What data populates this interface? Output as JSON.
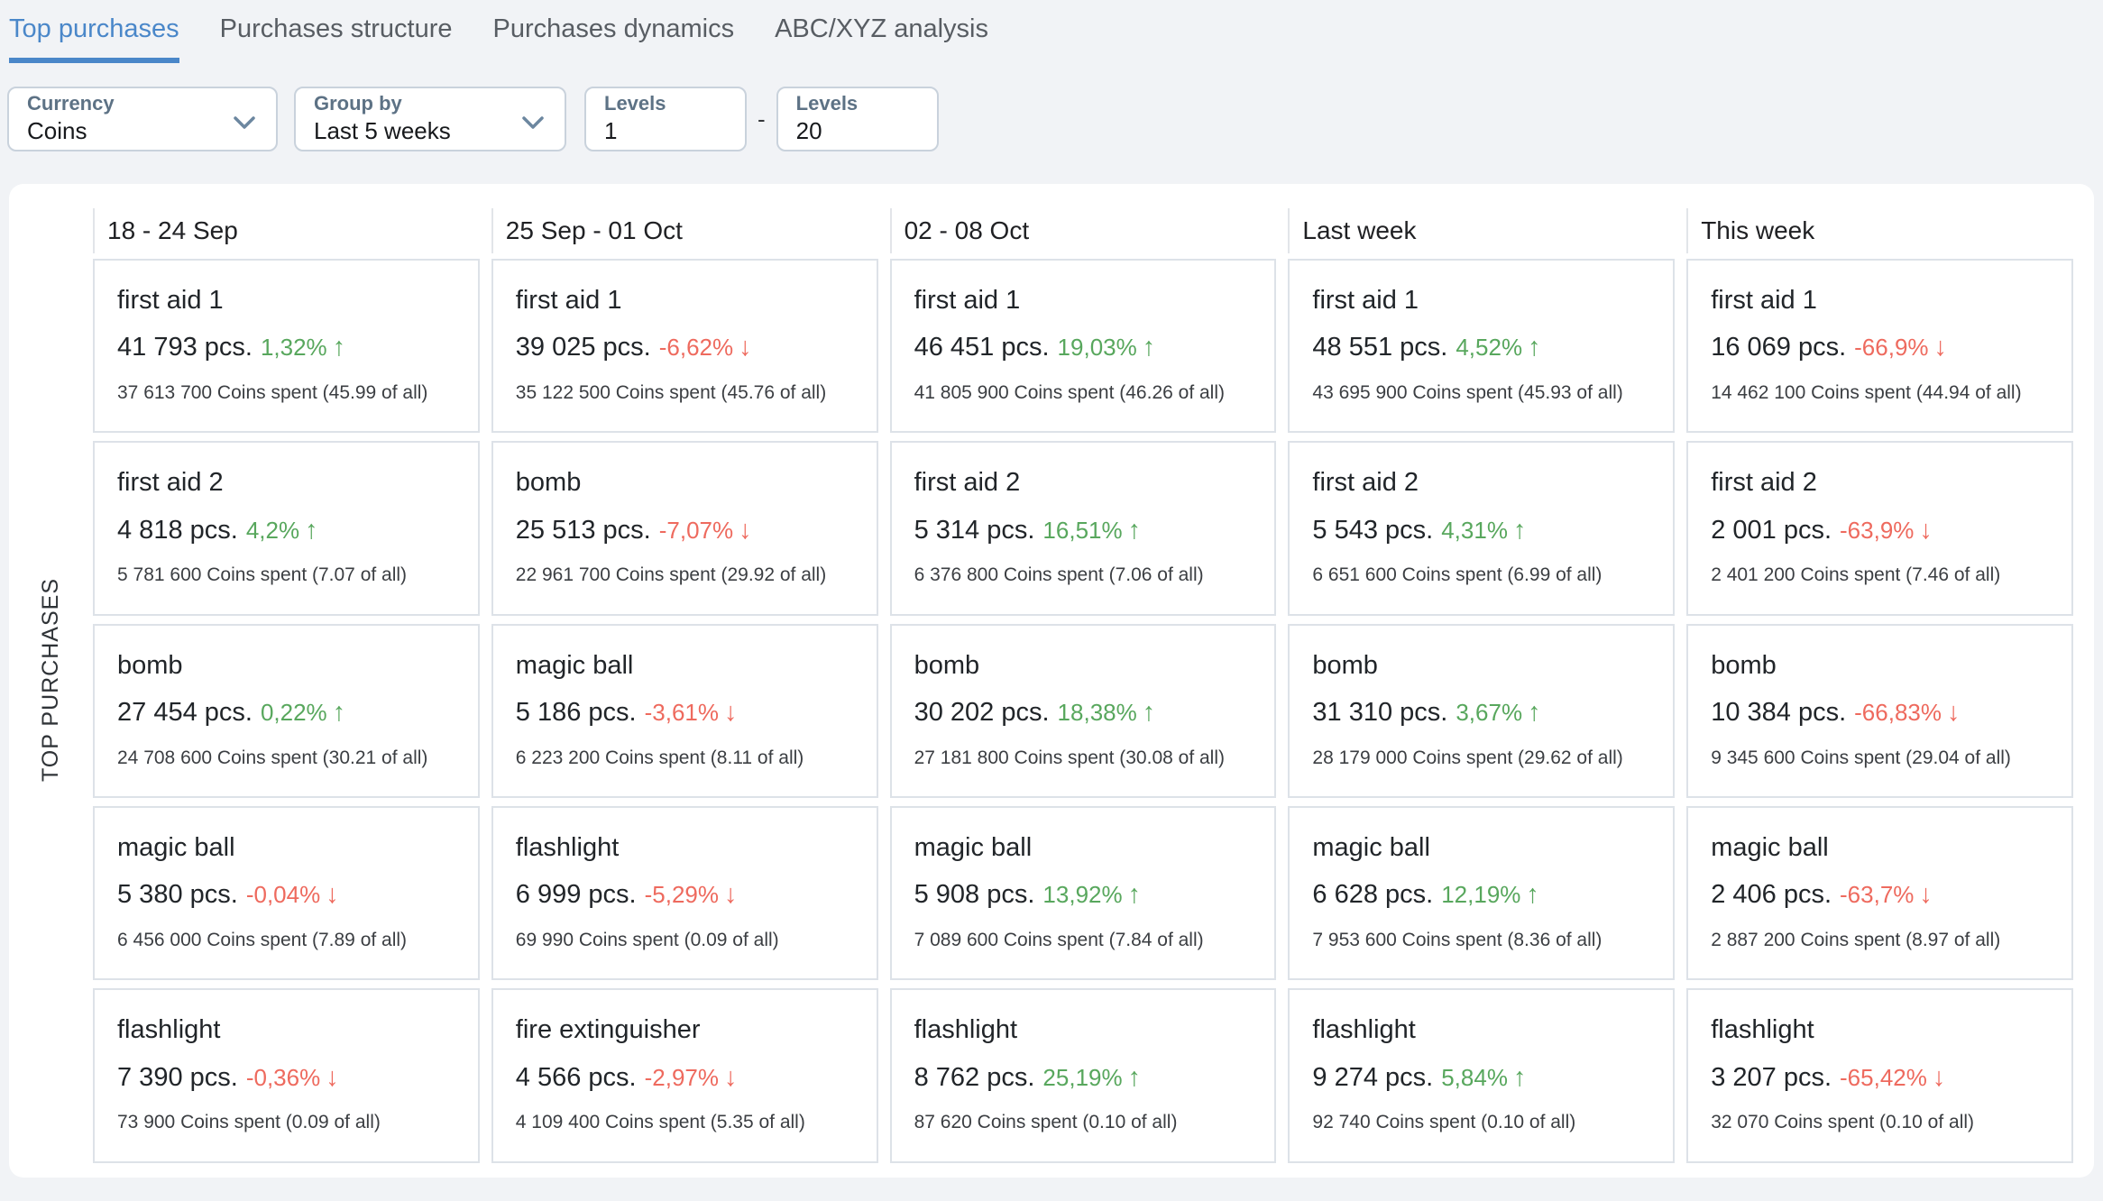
{
  "tabs": [
    {
      "label": "Top purchases",
      "active": true
    },
    {
      "label": "Purchases structure",
      "active": false
    },
    {
      "label": "Purchases dynamics",
      "active": false
    },
    {
      "label": "ABC/XYZ analysis",
      "active": false
    }
  ],
  "filters": {
    "currency": {
      "label": "Currency",
      "value": "Coins"
    },
    "group_by": {
      "label": "Group by",
      "value": "Last 5 weeks"
    },
    "levels_from": {
      "label": "Levels",
      "value": "1"
    },
    "separator": "-",
    "levels_to": {
      "label": "Levels",
      "value": "20"
    }
  },
  "section_label": "TOP PURCHASES",
  "colors": {
    "accent_blue": "#4a87c9",
    "trend_up_green": "#58a75d",
    "trend_down_red": "#ee6a5e"
  },
  "columns": [
    {
      "header": "18 - 24 Sep",
      "cards": [
        {
          "title": "first aid 1",
          "qty": "41 793 pcs.",
          "change": "1,32%",
          "direction": "up",
          "spent": "37 613 700 Coins spent (45.99 of all)"
        },
        {
          "title": "first aid 2",
          "qty": "4 818 pcs.",
          "change": "4,2%",
          "direction": "up",
          "spent": "5 781 600 Coins spent (7.07 of all)"
        },
        {
          "title": "bomb",
          "qty": "27 454 pcs.",
          "change": "0,22%",
          "direction": "up",
          "spent": "24 708 600 Coins spent (30.21 of all)"
        },
        {
          "title": "magic ball",
          "qty": "5 380 pcs.",
          "change": "-0,04%",
          "direction": "down",
          "spent": "6 456 000 Coins spent (7.89 of all)"
        },
        {
          "title": "flashlight",
          "qty": "7 390 pcs.",
          "change": "-0,36%",
          "direction": "down",
          "spent": "73 900 Coins spent (0.09 of all)"
        }
      ]
    },
    {
      "header": "25 Sep - 01 Oct",
      "cards": [
        {
          "title": "first aid 1",
          "qty": "39 025 pcs.",
          "change": "-6,62%",
          "direction": "down",
          "spent": "35 122 500 Coins spent (45.76 of all)"
        },
        {
          "title": "bomb",
          "qty": "25 513 pcs.",
          "change": "-7,07%",
          "direction": "down",
          "spent": "22 961 700 Coins spent (29.92 of all)"
        },
        {
          "title": "magic ball",
          "qty": "5 186 pcs.",
          "change": "-3,61%",
          "direction": "down",
          "spent": "6 223 200 Coins spent (8.11 of all)"
        },
        {
          "title": "flashlight",
          "qty": "6 999 pcs.",
          "change": "-5,29%",
          "direction": "down",
          "spent": "69 990 Coins spent (0.09 of all)"
        },
        {
          "title": "fire extinguisher",
          "qty": "4 566 pcs.",
          "change": "-2,97%",
          "direction": "down",
          "spent": "4 109 400 Coins spent (5.35 of all)"
        }
      ]
    },
    {
      "header": "02 - 08 Oct",
      "cards": [
        {
          "title": "first aid 1",
          "qty": "46 451 pcs.",
          "change": "19,03%",
          "direction": "up",
          "spent": "41 805 900 Coins spent (46.26 of all)"
        },
        {
          "title": "first aid 2",
          "qty": "5 314 pcs.",
          "change": "16,51%",
          "direction": "up",
          "spent": "6 376 800 Coins spent (7.06 of all)"
        },
        {
          "title": "bomb",
          "qty": "30 202 pcs.",
          "change": "18,38%",
          "direction": "up",
          "spent": "27 181 800 Coins spent (30.08 of all)"
        },
        {
          "title": "magic ball",
          "qty": "5 908 pcs.",
          "change": "13,92%",
          "direction": "up",
          "spent": "7 089 600 Coins spent (7.84 of all)"
        },
        {
          "title": "flashlight",
          "qty": "8 762 pcs.",
          "change": "25,19%",
          "direction": "up",
          "spent": "87 620 Coins spent (0.10 of all)"
        }
      ]
    },
    {
      "header": "Last week",
      "cards": [
        {
          "title": "first aid 1",
          "qty": "48 551 pcs.",
          "change": "4,52%",
          "direction": "up",
          "spent": "43 695 900 Coins spent (45.93 of all)",
          "wrap": true
        },
        {
          "title": "first aid 2",
          "qty": "5 543 pcs.",
          "change": "4,31%",
          "direction": "up",
          "spent": "6 651 600 Coins spent (6.99 of all)"
        },
        {
          "title": "bomb",
          "qty": "31 310 pcs.",
          "change": "3,67%",
          "direction": "up",
          "spent": "28 179 000 Coins spent (29.62 of all)"
        },
        {
          "title": "magic ball",
          "qty": "6 628 pcs.",
          "change": "12,19%",
          "direction": "up",
          "spent": "7 953 600 Coins spent (8.36 of all)"
        },
        {
          "title": "flashlight",
          "qty": "9 274 pcs.",
          "change": "5,84%",
          "direction": "up",
          "spent": "92 740 Coins spent (0.10 of all)"
        }
      ]
    },
    {
      "header": "This week",
      "cards": [
        {
          "title": "first aid 1",
          "qty": "16 069 pcs.",
          "change": "-66,9%",
          "direction": "down",
          "spent": "14 462 100 Coins spent (44.94 of all)"
        },
        {
          "title": "first aid 2",
          "qty": "2 001 pcs.",
          "change": "-63,9%",
          "direction": "down",
          "spent": "2 401 200 Coins spent (7.46 of all)"
        },
        {
          "title": "bomb",
          "qty": "10 384 pcs.",
          "change": "-66,83%",
          "direction": "down",
          "spent": "9 345 600 Coins spent (29.04 of all)"
        },
        {
          "title": "magic ball",
          "qty": "2 406 pcs.",
          "change": "-63,7%",
          "direction": "down",
          "spent": "2 887 200 Coins spent (8.97 of all)"
        },
        {
          "title": "flashlight",
          "qty": "3 207 pcs.",
          "change": "-65,42%",
          "direction": "down",
          "spent": "32 070 Coins spent (0.10 of all)"
        }
      ]
    }
  ]
}
